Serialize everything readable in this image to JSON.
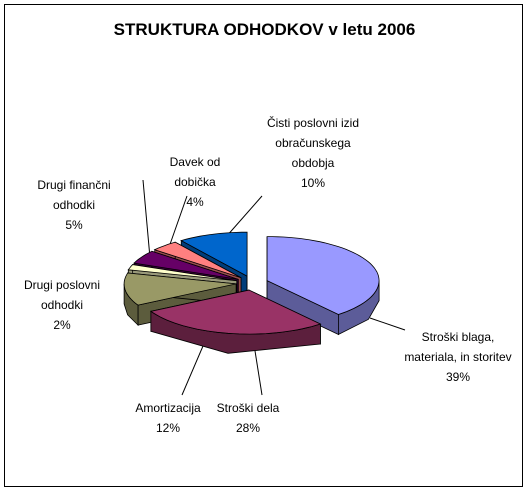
{
  "chart_data": {
    "type": "pie",
    "title": "STRUKTURA ODHODKOV v  letu 2006",
    "categories": [
      "Stroški blaga, materiala, in storitev",
      "Stroški dela",
      "Amortizacija",
      "Drugi poslovni odhodki",
      "Drugi finančni odhodki",
      "Davek od dobička",
      "Čisti poslovni izid obračunskega obdobja"
    ],
    "values": [
      39,
      28,
      12,
      2,
      5,
      4,
      10
    ],
    "value_labels": [
      "39%",
      "28%",
      "12%",
      "2%",
      "5%",
      "4%",
      "10%"
    ],
    "colors": [
      "#9999ff",
      "#993366",
      "#999966",
      "#ffffcc",
      "#660066",
      "#ff8080",
      "#0066cc"
    ],
    "three_d": true,
    "exploded": true
  }
}
